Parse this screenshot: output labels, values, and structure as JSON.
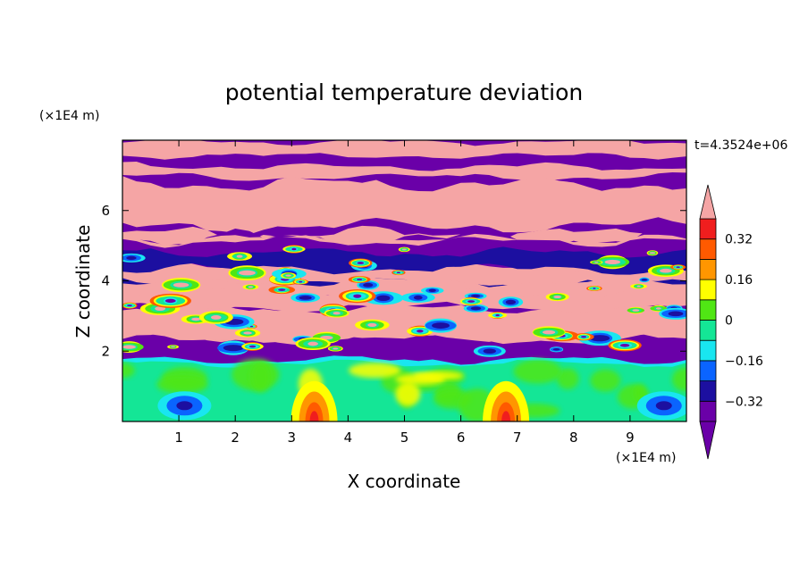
{
  "chart_data": {
    "type": "heatmap",
    "title": "potential temperature deviation",
    "xlabel": "X coordinate",
    "ylabel": "Z coordinate",
    "x_unit": "(×1E4 m)",
    "y_unit": "(×1E4 m)",
    "time_label": "t=4.3524e+06",
    "xlim": [
      0,
      10
    ],
    "ylim": [
      0,
      8
    ],
    "x_ticks": [
      1,
      2,
      3,
      4,
      5,
      6,
      7,
      8,
      9
    ],
    "y_ticks": [
      2,
      4,
      6
    ],
    "colorbar": {
      "levels": [
        -0.4,
        -0.32,
        -0.24,
        -0.16,
        -0.08,
        0,
        0.08,
        0.16,
        0.24,
        0.32,
        0.4
      ],
      "tick_labels": [
        "0.32",
        "0.16",
        "0",
        "−0.16",
        "−0.32"
      ],
      "tick_values": [
        0.32,
        0.16,
        0,
        -0.16,
        -0.32
      ],
      "colors": [
        "#6a00a8",
        "#1c0fa0",
        "#0a64ff",
        "#19e6f0",
        "#14e696",
        "#50e614",
        "#ffff00",
        "#ff9600",
        "#ff5a00",
        "#f01e1e"
      ],
      "over_color": "#f5a5a5",
      "under_color": "#6a00a8"
    },
    "field_structure": {
      "lower_layer": {
        "z_range": [
          0,
          1.7
        ],
        "background": "#14e696",
        "warm_plumes_x": [
          3.4,
          6.8
        ],
        "cool_cells_x": [
          1.1,
          9.6
        ]
      },
      "mixed_layer": {
        "z_range": [
          1.7,
          5.0
        ]
      },
      "upper_layer": {
        "z_range": [
          5.0,
          8.0
        ],
        "alternating_bands": [
          "#f5a5a5",
          "#6a00a8"
        ]
      }
    }
  }
}
